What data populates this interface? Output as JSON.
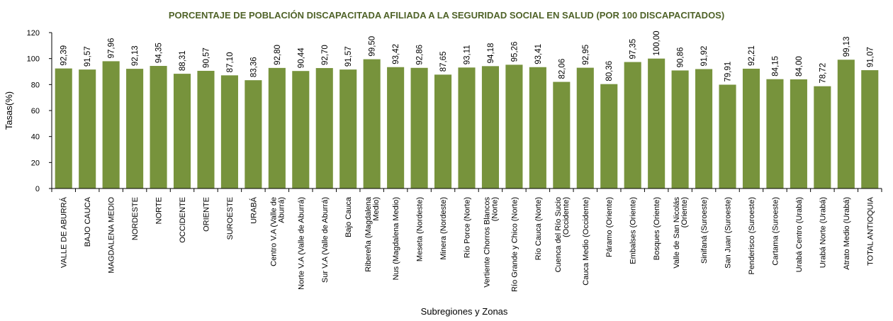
{
  "chart_data": {
    "type": "bar",
    "title": "PORCENTAJE DE POBLACIÓN DISCAPACITADA AFILIADA A LA SEGURIDAD SOCIAL EN SALUD (POR 100 DISCAPACITADOS)",
    "xlabel": "Subregiones y Zonas",
    "ylabel": "Tasas(%)",
    "ylim": [
      0,
      120
    ],
    "yticks": [
      0,
      20,
      40,
      60,
      80,
      100,
      120
    ],
    "grid": false,
    "legend": "none",
    "bar_color": "#77933C",
    "title_color": "#4F6228",
    "categories": [
      [
        "VALLE DE ABURRÁ"
      ],
      [
        "BAJO CAUCA"
      ],
      [
        "MAGDALENA MEDIO"
      ],
      [
        "NORDESTE"
      ],
      [
        "NORTE"
      ],
      [
        "OCCIDENTE"
      ],
      [
        "ORIENTE"
      ],
      [
        "SUROESTE"
      ],
      [
        "URABÁ"
      ],
      [
        "Centro V.A (Valle de",
        "Aburrá)"
      ],
      [
        "Norte V.A (Valle de Aburrá)"
      ],
      [
        "Sur V.A (Valle de Aburrá)"
      ],
      [
        "Bajo Cauca"
      ],
      [
        "Ribereña  (Magdalena",
        "Medio)"
      ],
      [
        "Nus  (Magdalena Medio)"
      ],
      [
        "Meseta  (Nordeste)"
      ],
      [
        "Minera  (Nordeste)"
      ],
      [
        "Río Porce   (Norte)"
      ],
      [
        "Vertiente Chorros Blancos",
        "(Norte)"
      ],
      [
        "Río Grande y Chico  (Norte)"
      ],
      [
        "Río Cauca  (Norte)"
      ],
      [
        "Cuenca del Río Sucio",
        "(Occidente)"
      ],
      [
        "Cauca Medio  (Occidente)"
      ],
      [
        "Páramo  (Oriente)"
      ],
      [
        "Embalses  (Oriente)"
      ],
      [
        "Bosques  (Oriente)"
      ],
      [
        "Valle de San Nicolás",
        "(Oriente)"
      ],
      [
        "Sinifaná  (Suroeste)"
      ],
      [
        "San Juan  (Suroeste)"
      ],
      [
        "Penderisco  (Suroeste)"
      ],
      [
        "Cartama  (Suroeste)"
      ],
      [
        "Urabá Centro  (Urabá)"
      ],
      [
        "Urabá Norte  (Urabá)"
      ],
      [
        "Atrato Medio  (Urabá)"
      ],
      [
        "TOTAL ANTIOQUIA"
      ]
    ],
    "values": [
      92.39,
      91.57,
      97.96,
      92.13,
      94.35,
      88.31,
      90.57,
      87.1,
      83.36,
      92.8,
      90.44,
      92.7,
      91.57,
      99.5,
      93.42,
      92.86,
      87.65,
      93.11,
      94.18,
      95.26,
      93.41,
      82.06,
      92.95,
      80.36,
      97.35,
      100.0,
      90.86,
      91.92,
      79.91,
      92.21,
      84.15,
      84.0,
      78.72,
      99.13,
      91.07
    ],
    "value_labels": [
      "92,39",
      "91,57",
      "97,96",
      "92,13",
      "94,35",
      "88,31",
      "90,57",
      "87,10",
      "83,36",
      "92,80",
      "90,44",
      "92,70",
      "91,57",
      "99,50",
      "93,42",
      "92,86",
      "87,65",
      "93,11",
      "94,18",
      "95,26",
      "93,41",
      "82,06",
      "92,95",
      "80,36",
      "97,35",
      "100,00",
      "90,86",
      "91,92",
      "79,91",
      "92,21",
      "84,15",
      "84,00",
      "78,72",
      "99,13",
      "91,07"
    ]
  }
}
